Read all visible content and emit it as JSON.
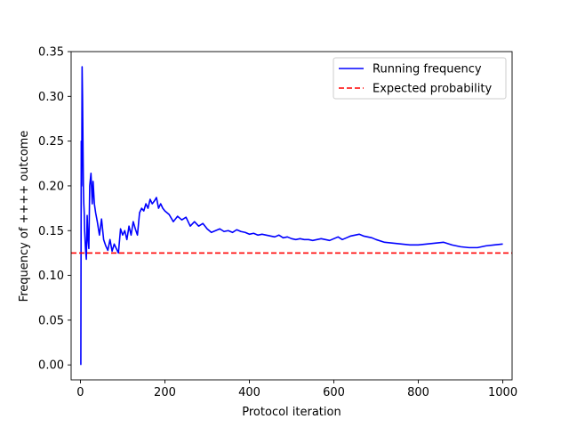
{
  "chart_data": {
    "type": "line",
    "xlabel": "Protocol iteration",
    "ylabel": "Frequency of ++++ outcome",
    "xlim": [
      -22,
      1022
    ],
    "ylim": [
      -0.0167,
      0.35
    ],
    "xticks": [
      0,
      200,
      400,
      600,
      800,
      1000
    ],
    "xtick_labels": [
      "0",
      "200",
      "400",
      "600",
      "800",
      "1000"
    ],
    "yticks": [
      0.0,
      0.05,
      0.1,
      0.15,
      0.2,
      0.25,
      0.3,
      0.35
    ],
    "ytick_labels": [
      "0.00",
      "0.05",
      "0.10",
      "0.15",
      "0.20",
      "0.25",
      "0.30",
      "0.35"
    ],
    "grid": false,
    "legend_position": "upper right",
    "series": [
      {
        "name": "Running frequency",
        "color": "#0000ff",
        "style": "solid",
        "x": [
          1,
          2,
          3,
          4,
          5,
          6,
          7,
          8,
          9,
          10,
          12,
          14,
          16,
          18,
          20,
          22,
          25,
          28,
          30,
          33,
          36,
          40,
          45,
          50,
          55,
          60,
          65,
          70,
          75,
          80,
          85,
          90,
          95,
          100,
          105,
          110,
          115,
          120,
          125,
          130,
          135,
          140,
          145,
          150,
          155,
          160,
          165,
          170,
          175,
          180,
          185,
          190,
          195,
          200,
          210,
          220,
          230,
          240,
          250,
          260,
          270,
          280,
          290,
          300,
          310,
          320,
          330,
          340,
          350,
          360,
          370,
          380,
          390,
          400,
          410,
          420,
          430,
          440,
          450,
          460,
          470,
          480,
          490,
          500,
          510,
          520,
          530,
          540,
          550,
          560,
          570,
          580,
          590,
          600,
          610,
          620,
          630,
          640,
          650,
          660,
          670,
          680,
          690,
          700,
          720,
          740,
          760,
          780,
          800,
          820,
          840,
          860,
          880,
          900,
          920,
          940,
          960,
          980,
          1000
        ],
        "y": [
          0.0,
          0.25,
          0.2,
          0.333,
          0.3,
          0.25,
          0.2,
          0.18,
          0.17,
          0.15,
          0.13,
          0.118,
          0.167,
          0.14,
          0.13,
          0.2,
          0.214,
          0.18,
          0.205,
          0.18,
          0.17,
          0.16,
          0.145,
          0.163,
          0.14,
          0.133,
          0.128,
          0.14,
          0.127,
          0.135,
          0.13,
          0.125,
          0.152,
          0.145,
          0.15,
          0.14,
          0.155,
          0.145,
          0.16,
          0.152,
          0.145,
          0.17,
          0.175,
          0.172,
          0.18,
          0.175,
          0.185,
          0.18,
          0.183,
          0.187,
          0.175,
          0.18,
          0.175,
          0.172,
          0.168,
          0.16,
          0.166,
          0.162,
          0.165,
          0.155,
          0.16,
          0.155,
          0.158,
          0.152,
          0.148,
          0.15,
          0.152,
          0.149,
          0.15,
          0.148,
          0.151,
          0.149,
          0.148,
          0.146,
          0.147,
          0.145,
          0.146,
          0.145,
          0.144,
          0.143,
          0.145,
          0.142,
          0.143,
          0.141,
          0.14,
          0.141,
          0.14,
          0.14,
          0.139,
          0.14,
          0.141,
          0.14,
          0.139,
          0.141,
          0.143,
          0.14,
          0.142,
          0.144,
          0.145,
          0.146,
          0.144,
          0.143,
          0.142,
          0.14,
          0.137,
          0.136,
          0.135,
          0.134,
          0.134,
          0.135,
          0.136,
          0.137,
          0.134,
          0.132,
          0.131,
          0.131,
          0.133,
          0.134,
          0.135
        ]
      },
      {
        "name": "Expected probability",
        "color": "#ff0000",
        "style": "dashed",
        "hline": 0.125
      }
    ]
  }
}
